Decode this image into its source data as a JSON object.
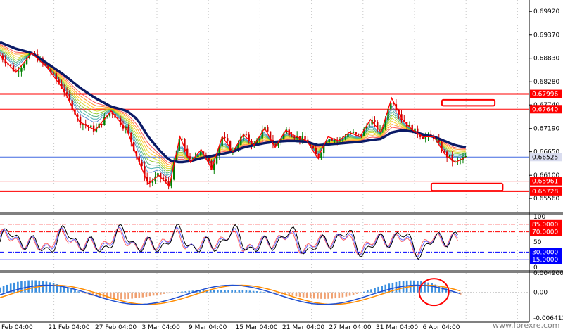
{
  "chart_data": [
    {
      "type": "candlestick",
      "panel": "price",
      "ylim": [
        0.653,
        0.7012
      ],
      "price_ticks": [
        "0.69920",
        "0.69370",
        "0.68830",
        "0.68280",
        "0.67740",
        "0.67190",
        "0.66650",
        "0.66100",
        "0.65560"
      ],
      "horizontal_levels": [
        {
          "label": "0.67996",
          "value": 0.67996,
          "color": "#ff0000",
          "thick": true
        },
        {
          "label": "0.67640",
          "value": 0.6764,
          "color": "#ff0000",
          "thick": false
        },
        {
          "label": "0.65961",
          "value": 0.65961,
          "color": "#ff0000",
          "thick": false
        },
        {
          "label": "0.65728",
          "value": 0.65728,
          "color": "#ff0000",
          "thick": true
        }
      ],
      "current_price": {
        "label": "0.66525",
        "value": 0.66525,
        "color": "#4169e1"
      },
      "zones": [
        {
          "y_from": 0.6772,
          "y_to": 0.6786,
          "x_from": 0.835,
          "x_to": 0.935,
          "color": "#ff0000"
        },
        {
          "y_from": 0.6574,
          "y_to": 0.6591,
          "x_from": 0.815,
          "x_to": 0.95,
          "color": "#ff0000"
        }
      ],
      "price_path_x": [
        0,
        0.03,
        0.06,
        0.09,
        0.12,
        0.15,
        0.18,
        0.21,
        0.24,
        0.26,
        0.28,
        0.3,
        0.32,
        0.34,
        0.36,
        0.38,
        0.4,
        0.42,
        0.44,
        0.46,
        0.48,
        0.5,
        0.52,
        0.54,
        0.56,
        0.58,
        0.6,
        0.62,
        0.64,
        0.66,
        0.68,
        0.7,
        0.72,
        0.74,
        0.76,
        0.78,
        0.8,
        0.82,
        0.84,
        0.86,
        0.88
      ],
      "price_path_y": [
        0.689,
        0.685,
        0.6895,
        0.686,
        0.681,
        0.6735,
        0.6715,
        0.676,
        0.6715,
        0.665,
        0.659,
        0.661,
        0.6585,
        0.67,
        0.664,
        0.667,
        0.6625,
        0.67,
        0.6665,
        0.6705,
        0.668,
        0.672,
        0.6675,
        0.6715,
        0.67,
        0.669,
        0.665,
        0.67,
        0.669,
        0.671,
        0.67,
        0.674,
        0.671,
        0.679,
        0.674,
        0.6715,
        0.67,
        0.67,
        0.666,
        0.664,
        0.6652
      ],
      "ma_path_y": [
        0.692,
        0.6905,
        0.6895,
        0.687,
        0.6845,
        0.6815,
        0.679,
        0.677,
        0.676,
        0.674,
        0.67,
        0.667,
        0.6645,
        0.664,
        0.6643,
        0.665,
        0.6655,
        0.666,
        0.6665,
        0.6675,
        0.668,
        0.6685,
        0.6688,
        0.669,
        0.669,
        0.6688,
        0.668,
        0.6682,
        0.6684,
        0.6686,
        0.6688,
        0.6692,
        0.6695,
        0.671,
        0.6715,
        0.6712,
        0.6705,
        0.67,
        0.669,
        0.668,
        0.6675
      ]
    },
    {
      "type": "line",
      "panel": "oscillator",
      "ylim": [
        0,
        100
      ],
      "y_ticks": [
        "100",
        "50",
        "0"
      ],
      "levels": [
        {
          "label": "85.0000",
          "value": 85,
          "color": "#ff0000",
          "style": "dashdot"
        },
        {
          "label": "70.0000",
          "value": 70,
          "color": "#ff0000",
          "style": "dashdot"
        },
        {
          "label": "30.0000",
          "value": 30,
          "color": "#0000ff",
          "style": "dashdot"
        },
        {
          "label": "15.0000",
          "value": 15,
          "color": "#0000ff",
          "style": "solid"
        }
      ]
    },
    {
      "type": "histogram",
      "panel": "macd",
      "ylim": [
        -0.006413,
        0.0049007
      ],
      "y_ticks": [
        "0.0049007",
        "0.00",
        "-0.006413"
      ],
      "annotation": "circle"
    }
  ],
  "time_axis": {
    "labels": [
      "Feb 04:00",
      "21 Feb 04:00",
      "27 Feb 04:00",
      "3 Mar 04:00",
      "9 Mar 04:00",
      "15 Mar 04:00",
      "21 Mar 04:00",
      "27 Mar 04:00",
      "31 Mar 04:00",
      "6 Apr 04:00"
    ]
  },
  "watermark": "www.forexre.com",
  "colors": {
    "bull_candle": "#008000",
    "bear_candle": "#d00000",
    "ma_main": "#0b1a66",
    "zigzag": "#ff0000",
    "histogram_pos": "#3a8fe0",
    "histogram_neg": "#f0a070",
    "signal_blue": "#1f4fd0",
    "signal_orange": "#ff8c00"
  }
}
